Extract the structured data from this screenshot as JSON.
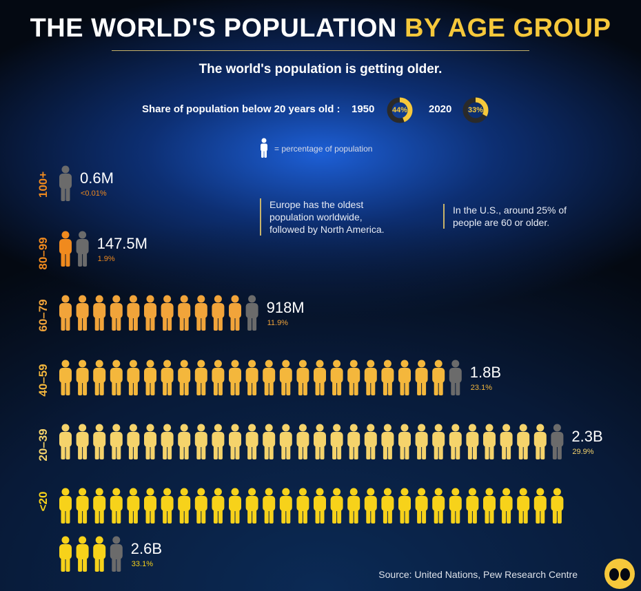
{
  "header": {
    "title_main": "THE WORLD'S POPULATION",
    "title_highlight": "BY AGE GROUP",
    "subtitle": "The world's population is getting older."
  },
  "share": {
    "label": "Share of population below 20 years old :",
    "items": [
      {
        "year": "1950",
        "value_label": "44%",
        "value": 44
      },
      {
        "year": "2020",
        "value_label": "33%",
        "value": 33
      }
    ]
  },
  "legend": {
    "text": "= percentage of population"
  },
  "notes": {
    "europe": [
      "Europe has the oldest",
      "population worldwide,",
      "followed by North America."
    ],
    "us": [
      "In the U.S., around 25% of",
      "people are 60 or older."
    ]
  },
  "chart_data": {
    "type": "bar",
    "categories": [
      "100+",
      "80–99",
      "60–79",
      "40–59",
      "20–39",
      "<20"
    ],
    "population_labels": [
      "0.6M",
      "147.5M",
      "918M",
      "1.8B",
      "2.3B",
      "2.6B"
    ],
    "population_millions": [
      0.6,
      147.5,
      918,
      1800,
      2300,
      2600
    ],
    "share_labels": [
      "<0.01%",
      "1.9%",
      "11.9%",
      "23.1%",
      "29.9%",
      "33.1%"
    ],
    "share_percent": [
      0.01,
      1.9,
      11.9,
      23.1,
      29.9,
      33.1
    ],
    "colors": [
      "#f08a1e",
      "#f08a1e",
      "#f1a43a",
      "#f4b73c",
      "#f5d36b",
      "#f7d21a"
    ],
    "partial_color": "#6b6b6b"
  },
  "source": "Source: United Nations, Pew Research Centre",
  "colors": {
    "accent": "#f6c83b",
    "background": "#040912"
  }
}
